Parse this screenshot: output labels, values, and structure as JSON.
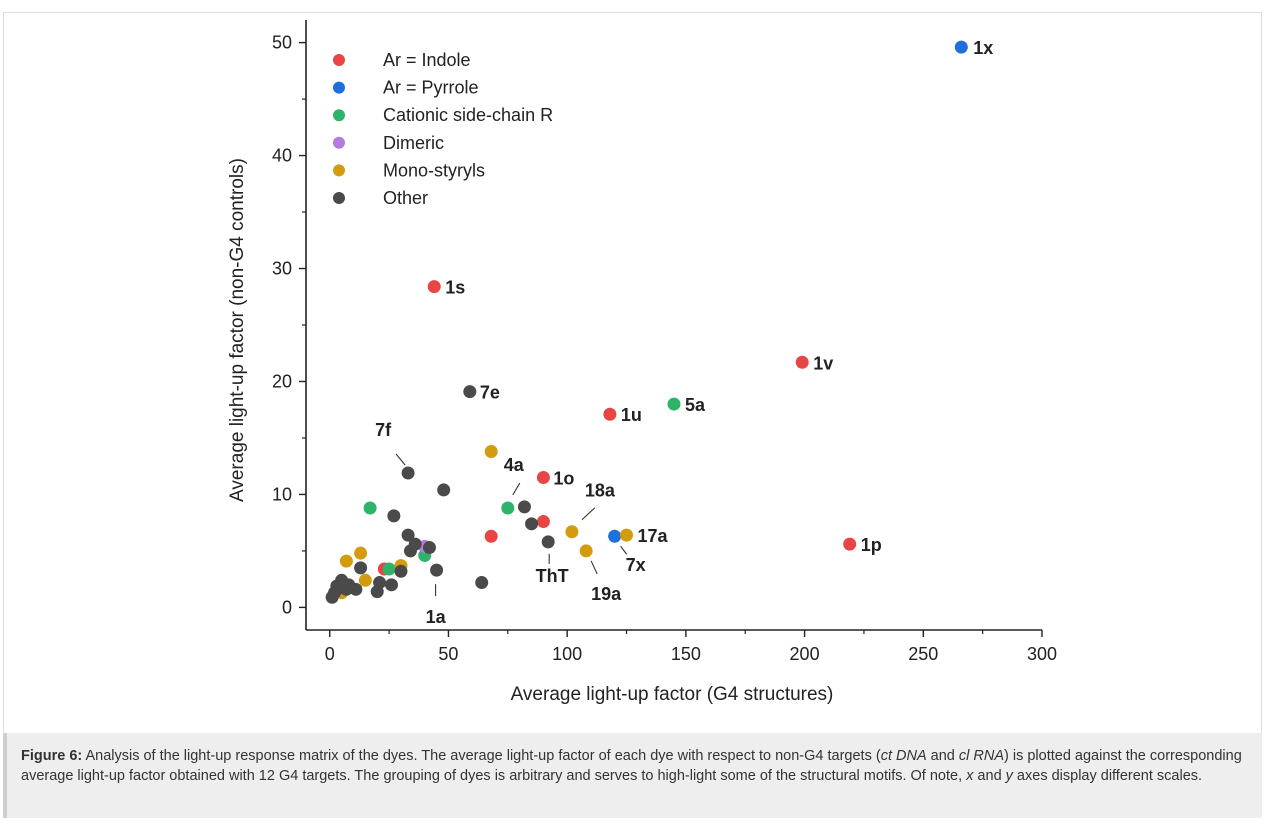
{
  "caption": {
    "label": "Figure 6:",
    "parts": [
      {
        "t": " Analysis of the light-up response matrix of the dyes. The average light-up factor of each dye with respect to non-G4 targets (",
        "i": false
      },
      {
        "t": "ct DNA",
        "i": true
      },
      {
        "t": " and ",
        "i": false
      },
      {
        "t": "cl RNA",
        "i": true
      },
      {
        "t": ") is plotted against the corresponding average light-up factor obtained with 12 G4 targets. The grouping of dyes is arbitrary and serves to high-light some of the structural motifs. Of note, ",
        "i": false
      },
      {
        "t": "x",
        "i": true
      },
      {
        "t": " and ",
        "i": false
      },
      {
        "t": "y",
        "i": true
      },
      {
        "t": " axes display different scales.",
        "i": false
      }
    ]
  },
  "chart_data": {
    "type": "scatter",
    "xlabel": "Average light-up factor (G4 structures)",
    "ylabel": "Average light-up factor (non-G4 controls)",
    "xlim": [
      -10,
      300
    ],
    "ylim": [
      -2,
      52
    ],
    "xticks": [
      0,
      50,
      100,
      150,
      200,
      250,
      300
    ],
    "yticks": [
      0,
      10,
      20,
      30,
      40,
      50
    ],
    "grid": false,
    "legend_position": "top-left",
    "series": [
      {
        "name": "Ar = Indole",
        "color": "#e84545",
        "points": [
          [
            44,
            28.4
          ],
          [
            199,
            21.7
          ],
          [
            118,
            17.1
          ],
          [
            90,
            11.5
          ],
          [
            219,
            5.6
          ],
          [
            68,
            6.3
          ],
          [
            90,
            7.6
          ],
          [
            23,
            3.4
          ]
        ]
      },
      {
        "name": "Ar = Pyrrole",
        "color": "#1f6fdd",
        "points": [
          [
            266,
            49.6
          ],
          [
            120,
            6.3
          ]
        ]
      },
      {
        "name": "Cationic side-chain R",
        "color": "#2fb36b",
        "points": [
          [
            145,
            18.0
          ],
          [
            17,
            8.8
          ],
          [
            75,
            8.8
          ],
          [
            40,
            4.6
          ],
          [
            25,
            3.4
          ]
        ]
      },
      {
        "name": "Dimeric",
        "color": "#b57be0",
        "points": [
          [
            40,
            5.4
          ]
        ]
      },
      {
        "name": "Mono-styryls",
        "color": "#d39b0e",
        "points": [
          [
            68,
            13.8
          ],
          [
            102,
            6.7
          ],
          [
            125,
            6.4
          ],
          [
            108,
            5.0
          ],
          [
            7,
            4.1
          ],
          [
            13,
            4.8
          ],
          [
            30,
            3.7
          ],
          [
            15,
            2.4
          ],
          [
            5,
            1.3
          ]
        ]
      },
      {
        "name": "Other",
        "color": "#4a4a4a",
        "points": [
          [
            59,
            19.1
          ],
          [
            33,
            11.9
          ],
          [
            48,
            10.4
          ],
          [
            82,
            8.9
          ],
          [
            27,
            8.1
          ],
          [
            85,
            7.4
          ],
          [
            33,
            6.4
          ],
          [
            92,
            5.8
          ],
          [
            36,
            5.6
          ],
          [
            42,
            5.3
          ],
          [
            34,
            5.0
          ],
          [
            13,
            3.5
          ],
          [
            30,
            3.2
          ],
          [
            45,
            3.3
          ],
          [
            64,
            2.2
          ],
          [
            5,
            2.4
          ],
          [
            8,
            2.0
          ],
          [
            4,
            1.7
          ],
          [
            7,
            1.6
          ],
          [
            11,
            1.6
          ],
          [
            21,
            2.2
          ],
          [
            26,
            2.0
          ],
          [
            20,
            1.4
          ],
          [
            2,
            1.3
          ],
          [
            1,
            0.9
          ],
          [
            3,
            1.9
          ]
        ]
      }
    ],
    "annotations": [
      {
        "text": "1x",
        "x": 266,
        "y": 49.6
      },
      {
        "text": "1s",
        "x": 44,
        "y": 28.4
      },
      {
        "text": "1v",
        "x": 199,
        "y": 21.7
      },
      {
        "text": "7e",
        "x": 59,
        "y": 19.1
      },
      {
        "text": "5a",
        "x": 145,
        "y": 18.0
      },
      {
        "text": "1u",
        "x": 118,
        "y": 17.1
      },
      {
        "text": "7f",
        "x": 33,
        "y": 11.9
      },
      {
        "text": "4a",
        "x": 75,
        "y": 8.8
      },
      {
        "text": "1o",
        "x": 90,
        "y": 11.5
      },
      {
        "text": "18a",
        "x": 102,
        "y": 6.7
      },
      {
        "text": "17a",
        "x": 125,
        "y": 6.4
      },
      {
        "text": "1p",
        "x": 219,
        "y": 5.6
      },
      {
        "text": "ThT",
        "x": 92,
        "y": 5.8
      },
      {
        "text": "7x",
        "x": 120,
        "y": 6.3
      },
      {
        "text": "19a",
        "x": 108,
        "y": 5.0
      },
      {
        "text": "1a",
        "x": 45,
        "y": 3.3
      }
    ]
  }
}
